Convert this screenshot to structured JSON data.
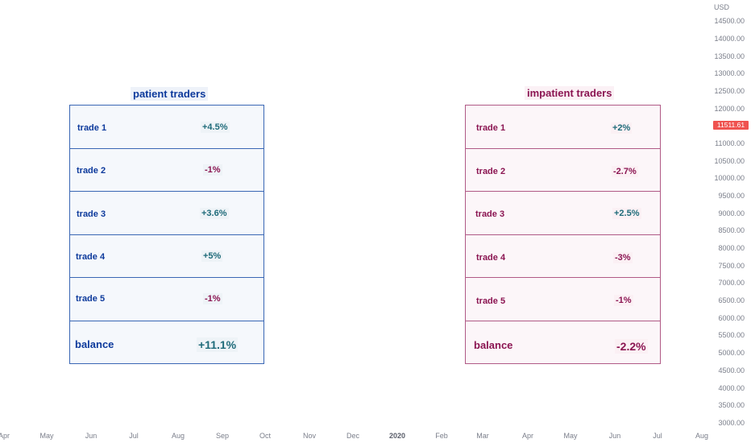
{
  "price_axis": {
    "currency": "USD",
    "ticks": [
      "14500.00",
      "14000.00",
      "13500.00",
      "13000.00",
      "12500.00",
      "12000.00",
      "11000.00",
      "10500.00",
      "10000.00",
      "9500.00",
      "9000.00",
      "8500.00",
      "8000.00",
      "7500.00",
      "7000.00",
      "6500.00",
      "6000.00",
      "5500.00",
      "5000.00",
      "4500.00",
      "4000.00",
      "3500.00",
      "3000.00"
    ],
    "current_price": "11511.61",
    "current_price_color": "#ef5350"
  },
  "time_axis": {
    "ticks": [
      "Apr",
      "May",
      "Jun",
      "Jul",
      "Aug",
      "Sep",
      "Oct",
      "Nov",
      "Dec",
      "2020",
      "Feb",
      "Mar",
      "Apr",
      "May",
      "Jun",
      "Jul",
      "Aug"
    ]
  },
  "patient": {
    "title": "patient traders",
    "rows": [
      {
        "label": "trade 1",
        "value": "+4.5%"
      },
      {
        "label": "trade 2",
        "value": "-1%"
      },
      {
        "label": "trade 3",
        "value": "+3.6%"
      },
      {
        "label": "trade 4",
        "value": "+5%"
      },
      {
        "label": "trade 5",
        "value": "-1%"
      }
    ],
    "balance": {
      "label": "balance",
      "value": "+11.1%"
    }
  },
  "impatient": {
    "title": "impatient traders",
    "rows": [
      {
        "label": "trade 1",
        "value": "+2%"
      },
      {
        "label": "trade 2",
        "value": "-2.7%"
      },
      {
        "label": "trade 3",
        "value": "+2.5%"
      },
      {
        "label": "trade 4",
        "value": "-3%"
      },
      {
        "label": "trade 5",
        "value": "-1%"
      }
    ],
    "balance": {
      "label": "balance",
      "value": "-2.2%"
    }
  },
  "colors": {
    "patient_accent": "#0d3a9c",
    "impatient_accent": "#8b1552",
    "positive": "#1f6b7a",
    "negative": "#8b1552"
  }
}
